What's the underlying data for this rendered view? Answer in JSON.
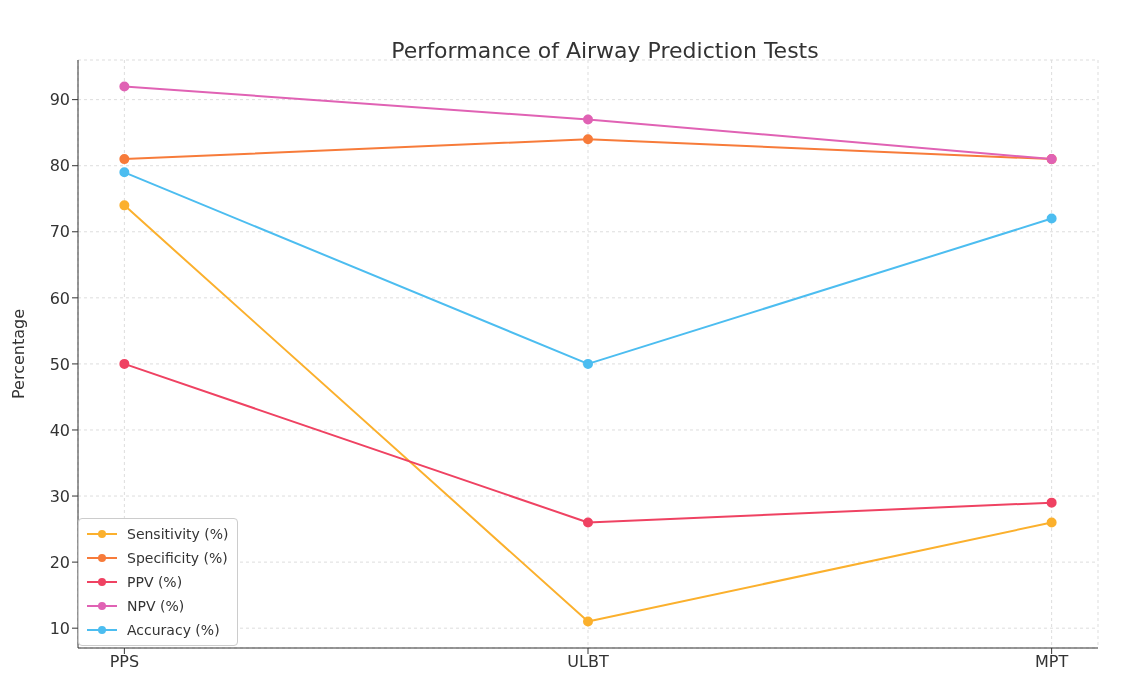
{
  "chart_data": {
    "type": "line",
    "title": "Performance of Airway Prediction Tests",
    "ylabel": "Percentage",
    "categories": [
      "PPS",
      "ULBT",
      "MPT"
    ],
    "series": [
      {
        "name": "Sensitivity (%)",
        "color": "#fbb02d",
        "values": [
          74,
          11,
          26
        ]
      },
      {
        "name": "Specificity (%)",
        "color": "#f77b3a",
        "values": [
          81,
          84,
          81
        ]
      },
      {
        "name": "PPV (%)",
        "color": "#ef4262",
        "values": [
          50,
          26,
          29
        ]
      },
      {
        "name": "NPV (%)",
        "color": "#e062b4",
        "values": [
          92,
          87,
          81
        ]
      },
      {
        "name": "Accuracy (%)",
        "color": "#4cbdf0",
        "values": [
          79,
          50,
          72
        ]
      }
    ],
    "ylim": [
      7,
      96
    ],
    "yticks": [
      10,
      20,
      30,
      40,
      50,
      60,
      70,
      80,
      90
    ],
    "grid": true,
    "legend": "bottom left",
    "marker": "circle",
    "line_style": "solid"
  }
}
